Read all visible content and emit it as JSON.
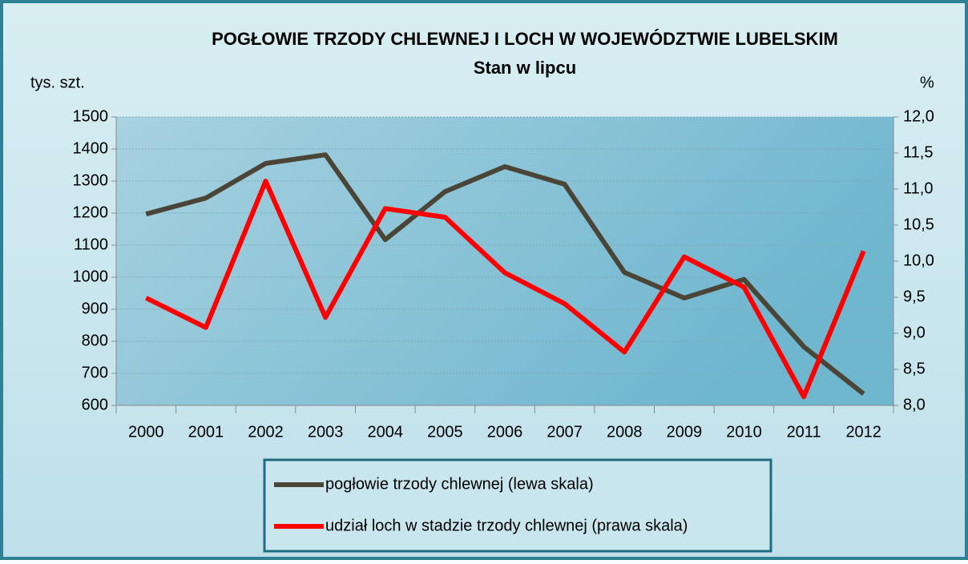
{
  "chart_data": {
    "type": "line",
    "title": "POGŁOWIE TRZODY CHLEWNEJ I LOCH W WOJEWÓDZTWIE LUBELSKIM",
    "subtitle": "Stan w lipcu",
    "y_label": "tys. szt.",
    "y2_label": "%",
    "categories": [
      "2000",
      "2001",
      "2002",
      "2003",
      "2004",
      "2005",
      "2006",
      "2007",
      "2008",
      "2009",
      "2010",
      "2011",
      "2012"
    ],
    "series": [
      {
        "name": "pogłowie trzody chlewnej (lewa skala)",
        "color": "#4a4536",
        "axis": "y",
        "values": [
          1197,
          1247,
          1355,
          1382,
          1117,
          1267,
          1345,
          1290,
          1015,
          935,
          993,
          783,
          636
        ]
      },
      {
        "name": "udział loch w stadzie trzody chlewnej (prawa skala)",
        "color": "#ff0000",
        "axis": "y2",
        "values": [
          9.49,
          9.08,
          11.11,
          9.22,
          10.73,
          10.61,
          9.84,
          9.41,
          8.74,
          10.06,
          9.64,
          8.12,
          10.14
        ]
      }
    ],
    "ylim": [
      600,
      1500
    ],
    "yticks": [
      600,
      700,
      800,
      900,
      1000,
      1100,
      1200,
      1300,
      1400,
      1500
    ],
    "y2lim": [
      8,
      12
    ],
    "y2ticks": [
      {
        "value": 8,
        "label": "8,0"
      },
      {
        "value": 8.5,
        "label": "8,5"
      },
      {
        "value": 9,
        "label": "9,0"
      },
      {
        "value": 9.5,
        "label": "9,5"
      },
      {
        "value": 10,
        "label": "10,0"
      },
      {
        "value": 10.5,
        "label": "10,5"
      },
      {
        "value": 11,
        "label": "11,0"
      },
      {
        "value": 11.5,
        "label": "11,5"
      },
      {
        "value": 12,
        "label": "12,0"
      }
    ],
    "grid": true,
    "legend": "bottom"
  }
}
